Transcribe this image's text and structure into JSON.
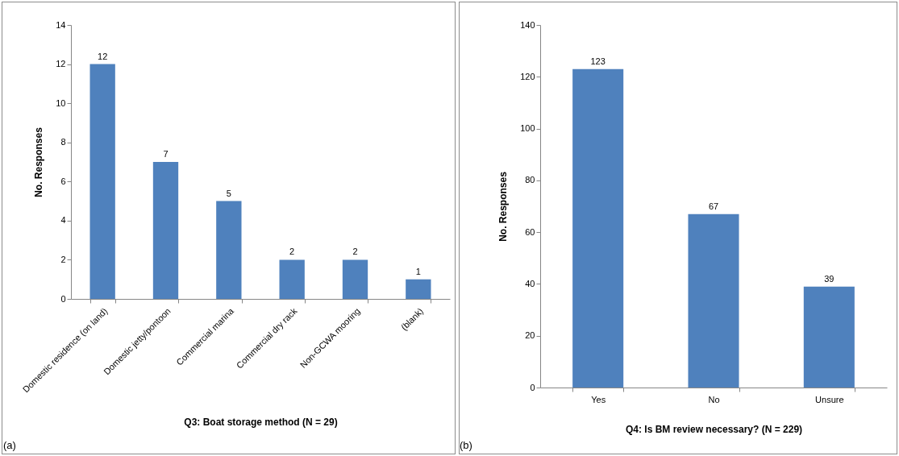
{
  "chart_data": [
    {
      "type": "bar",
      "xlabel": "Q3:  Boat storage method (N = 29)",
      "ylabel": "No. Responses",
      "categories": [
        "Domestic residence (on land)",
        "Domestic jetty/pontoon",
        "Commercial marina",
        "Commercial dry rack",
        "Non-GCWA mooring",
        "(blank)"
      ],
      "values": [
        12,
        7,
        5,
        2,
        2,
        1
      ],
      "color": "#4f81bd",
      "ylim": [
        0,
        14
      ],
      "yticks": [
        0,
        2,
        4,
        6,
        8,
        10,
        12,
        14
      ],
      "data_labels": true,
      "grid": false,
      "annotations": [
        "(a)"
      ]
    },
    {
      "type": "bar",
      "xlabel": "Q4:  Is BM review necessary? (N = 229)",
      "ylabel": "No. Responses",
      "categories": [
        "Yes",
        "No",
        "Unsure"
      ],
      "values": [
        123,
        67,
        39
      ],
      "color": "#4f81bd",
      "ylim": [
        0,
        140
      ],
      "yticks": [
        0,
        20,
        40,
        60,
        80,
        100,
        120,
        140
      ],
      "data_labels": true,
      "grid": false,
      "annotations": [
        "(b)"
      ]
    }
  ]
}
